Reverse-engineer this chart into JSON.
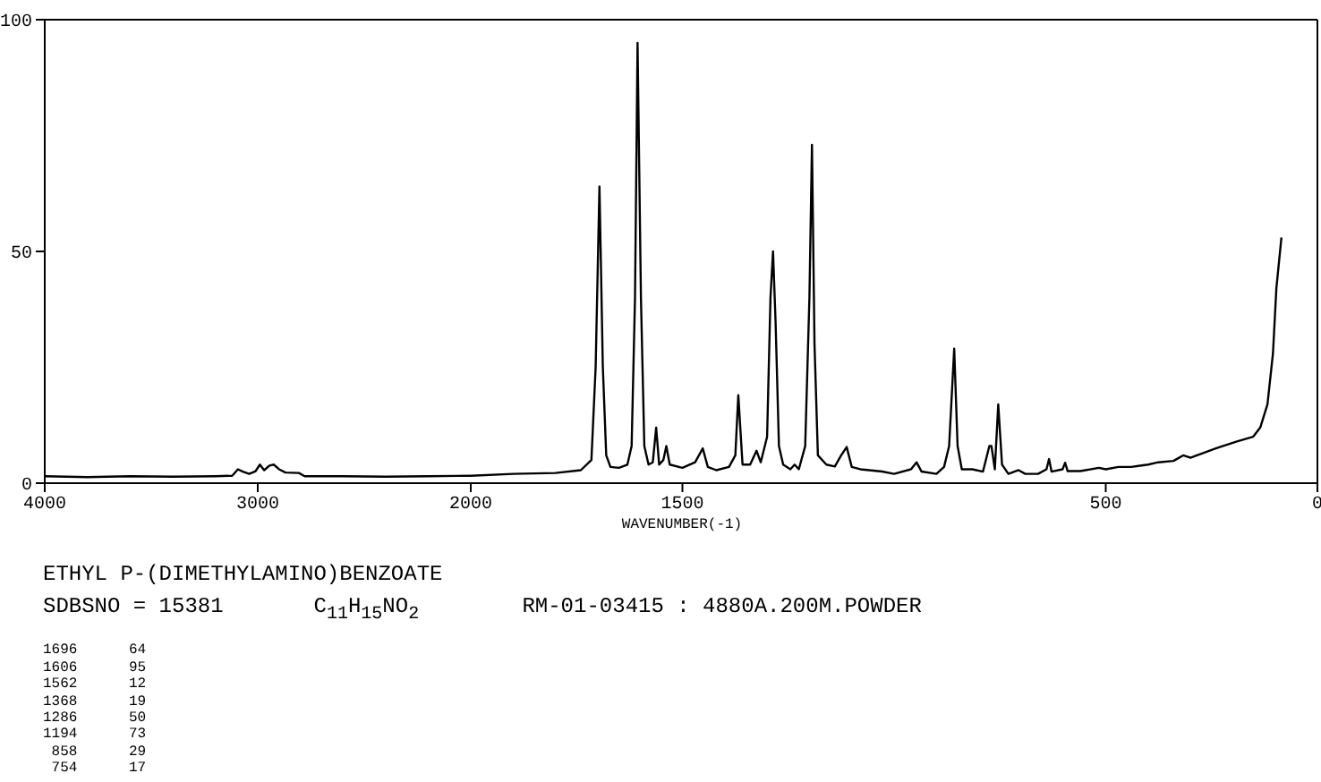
{
  "chart_data": [
    {
      "type": "line",
      "title": "ETHYL P-(DIMETHYLAMINO)BENZOATE",
      "subtitle": "SDBSNO = 15381       C$_{11}$H$_{15}$NO$_{2}$        RM-01-03415 : 4880A.200M.POWDER",
      "x": [
        4000,
        3800,
        3600,
        3400,
        3200,
        3120,
        3093,
        3070,
        3040,
        3010,
        2990,
        2970,
        2945,
        2925,
        2900,
        2870,
        2807,
        2780,
        2600,
        2400,
        2200,
        2000
      ],
      "series": [
        {
          "color": "#000000",
          "values": [
            1.5,
            1.3,
            1.5,
            1.4,
            1.5,
            1.6,
            3,
            2.5,
            2,
            2.6,
            4,
            2.8,
            3.8,
            4,
            3,
            2.3,
            2.2,
            1.5,
            1.5,
            1.4,
            1.5,
            1.6
          ]
        }
      ],
      "xlim": [
        4000,
        2000
      ],
      "xticks": [
        4000,
        3000,
        2000
      ],
      "ylim": [
        0,
        100
      ],
      "yticks": [
        0,
        50,
        100
      ],
      "marker": "none",
      "line_style": "solid",
      "annotations": [
        "1696      64",
        "1606      95",
        "1562      12",
        "1368      19",
        "1286      50",
        "1194      73",
        " 858      29",
        " 754      17"
      ]
    },
    {
      "type": "line",
      "xlabel": "WAVENUMBER(-1)",
      "x": [
        2000,
        1900,
        1800,
        1740,
        1715,
        1705,
        1696,
        1688,
        1680,
        1670,
        1650,
        1630,
        1620,
        1612,
        1606,
        1598,
        1590,
        1580,
        1570,
        1562,
        1555,
        1545,
        1538,
        1530,
        1500,
        1470,
        1452,
        1440,
        1420,
        1390,
        1375,
        1368,
        1358,
        1340,
        1325,
        1315,
        1300,
        1292,
        1286,
        1280,
        1272,
        1262,
        1245,
        1235,
        1225,
        1210,
        1200,
        1194,
        1188,
        1180,
        1160,
        1140,
        1125,
        1112,
        1100,
        1080,
        1028,
        1000,
        960,
        947,
        935,
        900,
        882,
        870,
        858,
        850,
        840,
        815,
        790,
        775,
        770,
        762,
        754,
        745,
        730,
        706,
        690,
        660,
        640,
        634,
        628,
        602,
        596,
        590,
        560,
        516,
        500,
        470,
        440,
        400,
        376,
        340,
        317,
        300,
        270,
        240,
        224,
        190,
        152,
        135,
        118,
        105,
        97,
        85
      ],
      "series": [
        {
          "color": "#000000",
          "values": [
            1.6,
            2,
            2.2,
            2.8,
            5,
            25,
            64,
            25,
            6,
            3.5,
            3.3,
            4,
            8,
            40,
            95,
            40,
            8,
            4,
            4.5,
            12,
            4,
            5,
            8,
            4,
            3.3,
            4.5,
            7.5,
            3.5,
            2.8,
            3.5,
            6,
            19,
            4,
            4,
            7,
            4.5,
            10,
            40,
            50,
            35,
            8,
            4,
            3,
            4,
            3,
            8,
            40,
            73,
            30,
            6,
            4,
            3.6,
            6,
            7.8,
            3.5,
            3,
            2.5,
            2,
            3,
            4.5,
            2.5,
            2,
            3.5,
            8,
            29,
            8,
            3,
            3,
            2.5,
            8,
            8,
            3,
            17,
            4,
            2,
            2.8,
            2,
            2,
            3,
            5.2,
            2.5,
            3,
            4.4,
            2.6,
            2.6,
            3.3,
            3,
            3.5,
            3.5,
            4,
            4.5,
            4.8,
            6,
            5.5,
            6.5,
            7.5,
            8,
            9,
            10,
            12,
            17,
            28,
            42,
            53
          ]
        }
      ],
      "xlim": [
        2000,
        0
      ],
      "xticks": [
        1500,
        500,
        0
      ],
      "ylim": [
        0,
        100
      ],
      "tick_labels": "x",
      "marker": "none",
      "line_style": "solid"
    }
  ]
}
